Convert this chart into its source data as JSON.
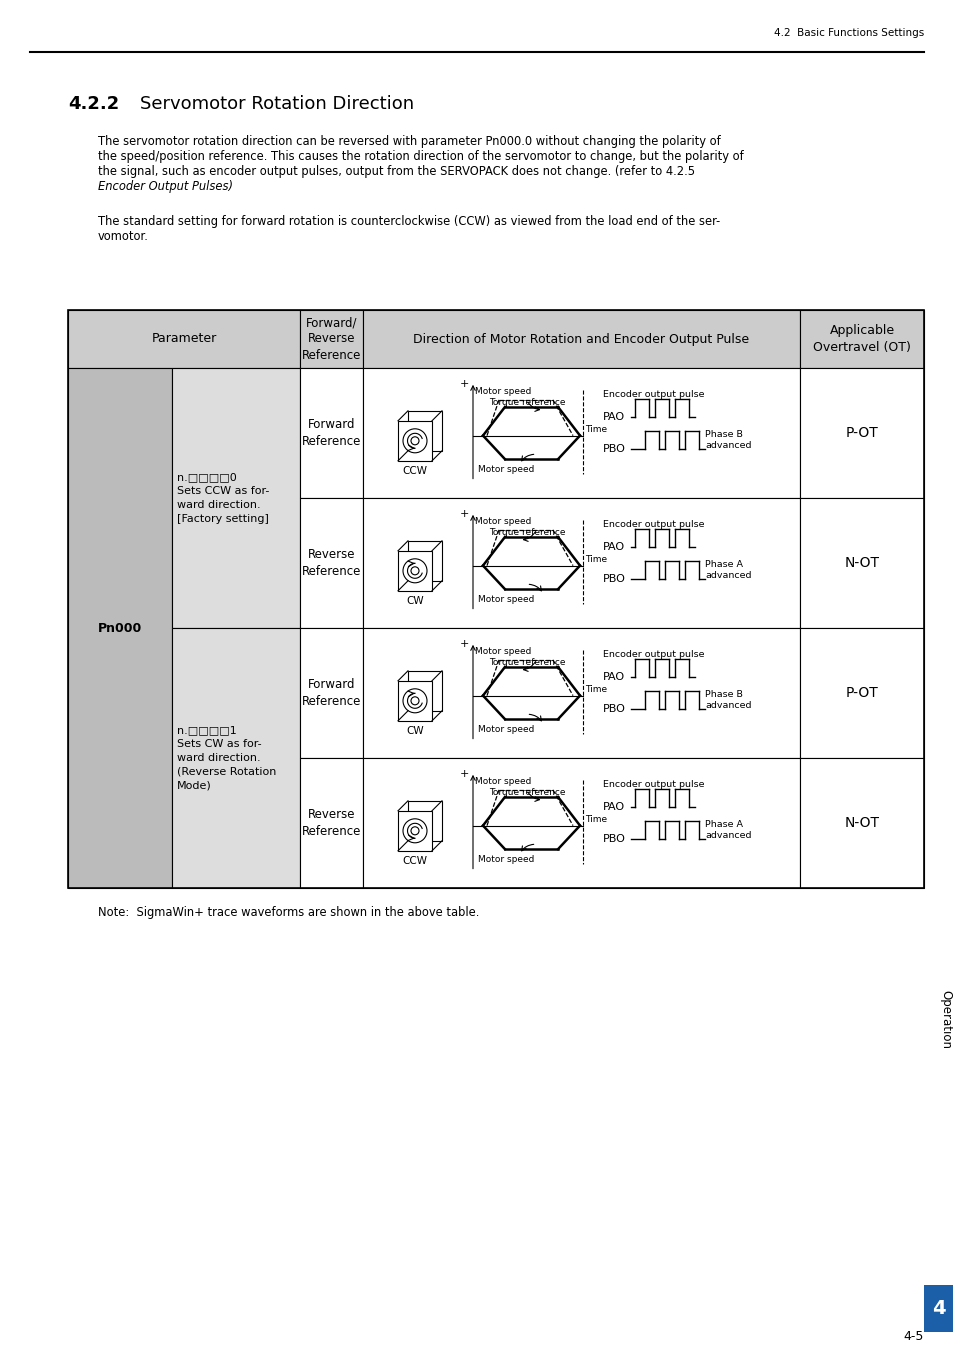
{
  "page_header_right": "4.2  Basic Functions Settings",
  "section_num": "4.2.2",
  "section_title": "Servomotor Rotation Direction",
  "body1_lines": [
    "The servomotor rotation direction can be reversed with parameter Pn000.0 without changing the polarity of",
    "the speed/position reference. This causes the rotation direction of the servomotor to change, but the polarity of",
    "the signal, such as encoder output pulses, output from the SERVOPACK does not change. (refer to 4.2.5"
  ],
  "body1_italic": "Encoder Output Pulses)",
  "body2_lines": [
    "The standard setting for forward rotation is counterclockwise (CCW) as viewed from the load end of the ser-",
    "vomotor."
  ],
  "note_text": "Note:  SigmaWin+ trace waveforms are shown in the above table.",
  "sidebar_text": "Operation",
  "page_num": "4-5",
  "chapter_num": "4",
  "table_header_bg": "#cccccc",
  "table_param_col_bg": "#bbbbbb",
  "table_param2_col_bg": "#dddddd",
  "row_directions": [
    "CCW",
    "CW",
    "CW",
    "CCW"
  ],
  "row_ref_labels": [
    "Forward\nReference",
    "Reverse\nReference",
    "Forward\nReference",
    "Reverse\nReference"
  ],
  "row_ot_labels": [
    "P-OT",
    "N-OT",
    "P-OT",
    "N-OT"
  ],
  "row_phase_notes": [
    "Phase B\nadvanced",
    "Phase A\nadvanced",
    "Phase B\nadvanced",
    "Phase A\nadvanced"
  ],
  "param1_label": "n.□□□□0\nSets CCW as for-\nward direction.\n[Factory setting]",
  "param2_label": "n.□□□□1\nSets CW as for-\nward direction.\n(Reverse Rotation\nMode)",
  "pn000_label": "Pn000"
}
